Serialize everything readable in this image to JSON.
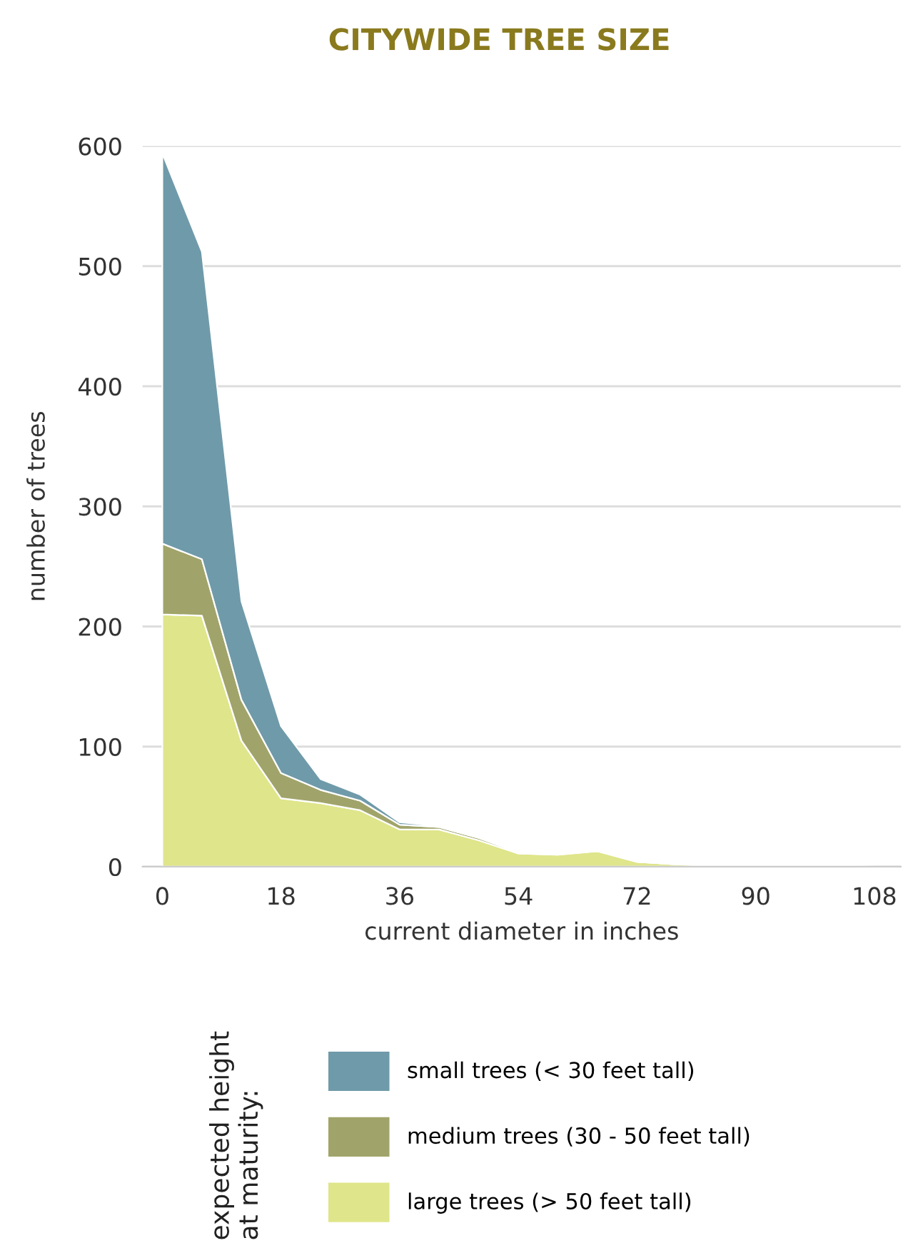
{
  "chart_data": {
    "type": "area",
    "stacked": true,
    "title": "CITYWIDE TREE SIZE",
    "xlabel": "current diameter in inches",
    "ylabel": "number of trees",
    "legend_title": "expected height\nat maturity:",
    "x": [
      0,
      6,
      12,
      18,
      24,
      30,
      36,
      42,
      48,
      54,
      60,
      66,
      72,
      78,
      84,
      90,
      96,
      102,
      108
    ],
    "series": [
      {
        "name": "large trees (> 50 feet tall)",
        "color": "#dfe58a",
        "values": [
          210,
          209,
          105,
          57,
          53,
          47,
          31,
          31,
          22,
          11,
          10,
          13,
          4,
          2,
          1,
          1,
          1,
          1,
          0
        ]
      },
      {
        "name": "medium trees (30 - 50 feet tall)",
        "color": "#a1a46a",
        "values": [
          59,
          47,
          34,
          21,
          11,
          8,
          4,
          2,
          2,
          1,
          1,
          0,
          0,
          0,
          0,
          0,
          0,
          0,
          0
        ]
      },
      {
        "name": "small trees (< 30 feet tall)",
        "color": "#6f9aa9",
        "values": [
          325,
          256,
          82,
          39,
          9,
          5,
          2,
          1,
          1,
          1,
          0,
          0,
          0,
          0,
          0,
          0,
          0,
          0,
          0
        ]
      }
    ],
    "xlim": [
      -3,
      112
    ],
    "xticks": [
      0,
      18,
      36,
      54,
      72,
      90,
      108
    ],
    "ylim": [
      0,
      600
    ],
    "yticks": [
      0,
      100,
      200,
      300,
      400,
      500,
      600
    ],
    "grid": "y",
    "legend": "bottom"
  }
}
